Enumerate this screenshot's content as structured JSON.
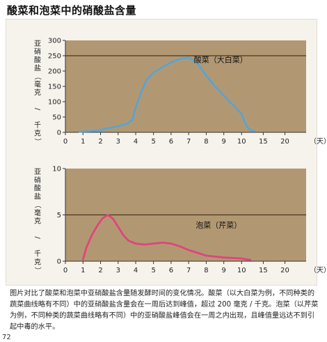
{
  "title": "酸菜和泡菜中的硝酸盐含量",
  "caption": "图片对比了酸菜和泡菜中亚硝酸盐含量随发酵时间的变化情况。酸菜（以大白菜为例，不同种类的蔬菜曲线略有不同）中的亚硝酸盐含量会在一周后达到峰值，超过 200 毫克 / 千克。泡菜（以芹菜为例，不同种类的蔬菜曲线略有不同）中的亚硝酸盐峰值会在一周之内出现，且峰值量远达不到引起中毒的水平。",
  "page_number": "72",
  "colors": {
    "plot_bg": "#b29872",
    "grid": "#4a3420",
    "sour_line": "#5aa3d2",
    "pickle_line": "#e0447e",
    "frame_bg": "#f5f3ec"
  },
  "chart_data": [
    {
      "type": "line",
      "ylabel": "亚硝酸盐（毫克 / 千克）",
      "xlabel": "（天）",
      "x_ticks": [
        "0",
        "1",
        "2",
        "3",
        "4",
        "5",
        "6",
        "7",
        "8",
        "9",
        "10",
        "15",
        "20"
      ],
      "y_ticks": [
        "0",
        "50",
        "100",
        "150",
        "200",
        "250",
        "300"
      ],
      "ylim": [
        0,
        300
      ],
      "reference_line": 250,
      "series": [
        {
          "name": "酸菜（大白菜）",
          "x": [
            0.8,
            1.5,
            2,
            2.5,
            3,
            3.5,
            3.8,
            4,
            4.3,
            4.6,
            5,
            5.5,
            6,
            6.5,
            7,
            7.5,
            8,
            8.5,
            9,
            9.5,
            10,
            10.5,
            11,
            11.5,
            12,
            13
          ],
          "y": [
            2,
            4,
            8,
            14,
            20,
            28,
            40,
            80,
            130,
            170,
            195,
            212,
            228,
            240,
            244,
            225,
            185,
            150,
            120,
            90,
            60,
            40,
            25,
            14,
            8,
            4
          ]
        }
      ]
    },
    {
      "type": "line",
      "ylabel": "亚硝酸盐（毫克 / 千克）",
      "xlabel": "（天）",
      "x_ticks": [
        "0",
        "1",
        "2",
        "3",
        "4",
        "5",
        "6",
        "7",
        "8",
        "9",
        "10",
        "15",
        "20"
      ],
      "y_ticks": [
        "0",
        "5",
        "10"
      ],
      "ylim": [
        0,
        10
      ],
      "reference_line": 5,
      "series": [
        {
          "name": "泡菜（芹菜）",
          "x": [
            1.0,
            1.2,
            1.5,
            1.8,
            2.1,
            2.4,
            2.7,
            3.0,
            3.3,
            3.6,
            4.0,
            4.5,
            5.0,
            5.5,
            6.0,
            6.5,
            7.0,
            7.5,
            8.0,
            9.0,
            10.0,
            11.0,
            12.0
          ],
          "y": [
            0.2,
            1.5,
            2.8,
            3.8,
            4.6,
            5.0,
            4.6,
            3.7,
            2.8,
            2.2,
            1.9,
            1.8,
            1.9,
            2.0,
            1.9,
            1.6,
            1.2,
            0.9,
            0.6,
            0.4,
            0.3,
            0.2,
            0.15
          ]
        }
      ]
    }
  ]
}
